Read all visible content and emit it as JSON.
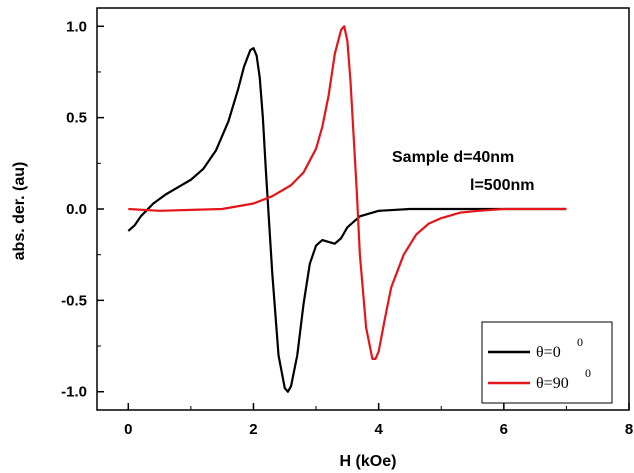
{
  "chart_data": {
    "type": "line",
    "xlabel": "H (kOe)",
    "ylabel": "abs. der. (au)",
    "xlim": [
      -0.5,
      8
    ],
    "ylim": [
      -1.1,
      1.1
    ],
    "xticks": [
      0,
      2,
      4,
      6,
      8
    ],
    "yticks": [
      -1.0,
      -0.5,
      0.0,
      0.5,
      1.0
    ],
    "xtick_labels": [
      "0",
      "2",
      "4",
      "6",
      "8"
    ],
    "ytick_labels": [
      "-1.0",
      "-0.5",
      "0.0",
      "0.5",
      "1.0"
    ],
    "grid": false,
    "legend_position": "bottom-right",
    "annotations": [
      "Sample d=40nm",
      "l=500nm"
    ],
    "series": [
      {
        "name": "θ=0",
        "name_superscript": "0",
        "color": "#000000",
        "x": [
          0,
          0.1,
          0.2,
          0.4,
          0.6,
          0.8,
          1.0,
          1.2,
          1.4,
          1.6,
          1.75,
          1.85,
          1.95,
          2.0,
          2.05,
          2.1,
          2.15,
          2.2,
          2.3,
          2.4,
          2.5,
          2.55,
          2.6,
          2.7,
          2.8,
          2.9,
          3.0,
          3.1,
          3.2,
          3.3,
          3.4,
          3.5,
          3.7,
          4.0,
          4.5,
          5.0,
          5.5,
          6.0,
          7.0
        ],
        "y": [
          -0.12,
          -0.09,
          -0.04,
          0.03,
          0.08,
          0.12,
          0.16,
          0.22,
          0.32,
          0.48,
          0.65,
          0.78,
          0.87,
          0.88,
          0.84,
          0.72,
          0.5,
          0.2,
          -0.35,
          -0.8,
          -0.98,
          -1.0,
          -0.97,
          -0.8,
          -0.52,
          -0.3,
          -0.2,
          -0.17,
          -0.18,
          -0.19,
          -0.16,
          -0.1,
          -0.04,
          -0.01,
          0.0,
          0.0,
          0.0,
          0.0,
          0.0
        ]
      },
      {
        "name": "θ=90",
        "name_superscript": "0",
        "color": "#e4161a",
        "x": [
          0,
          0.5,
          1.0,
          1.5,
          2.0,
          2.3,
          2.6,
          2.8,
          3.0,
          3.1,
          3.2,
          3.3,
          3.4,
          3.45,
          3.5,
          3.55,
          3.6,
          3.65,
          3.7,
          3.8,
          3.9,
          3.95,
          4.0,
          4.1,
          4.2,
          4.4,
          4.6,
          4.8,
          5.0,
          5.3,
          5.6,
          6.0,
          6.5,
          7.0
        ],
        "y": [
          0.0,
          -0.01,
          -0.005,
          0.0,
          0.03,
          0.07,
          0.13,
          0.2,
          0.33,
          0.45,
          0.62,
          0.85,
          0.98,
          1.0,
          0.92,
          0.7,
          0.4,
          0.1,
          -0.25,
          -0.65,
          -0.82,
          -0.82,
          -0.78,
          -0.6,
          -0.43,
          -0.25,
          -0.14,
          -0.08,
          -0.05,
          -0.02,
          -0.01,
          0.0,
          0.0,
          0.0
        ]
      }
    ]
  }
}
